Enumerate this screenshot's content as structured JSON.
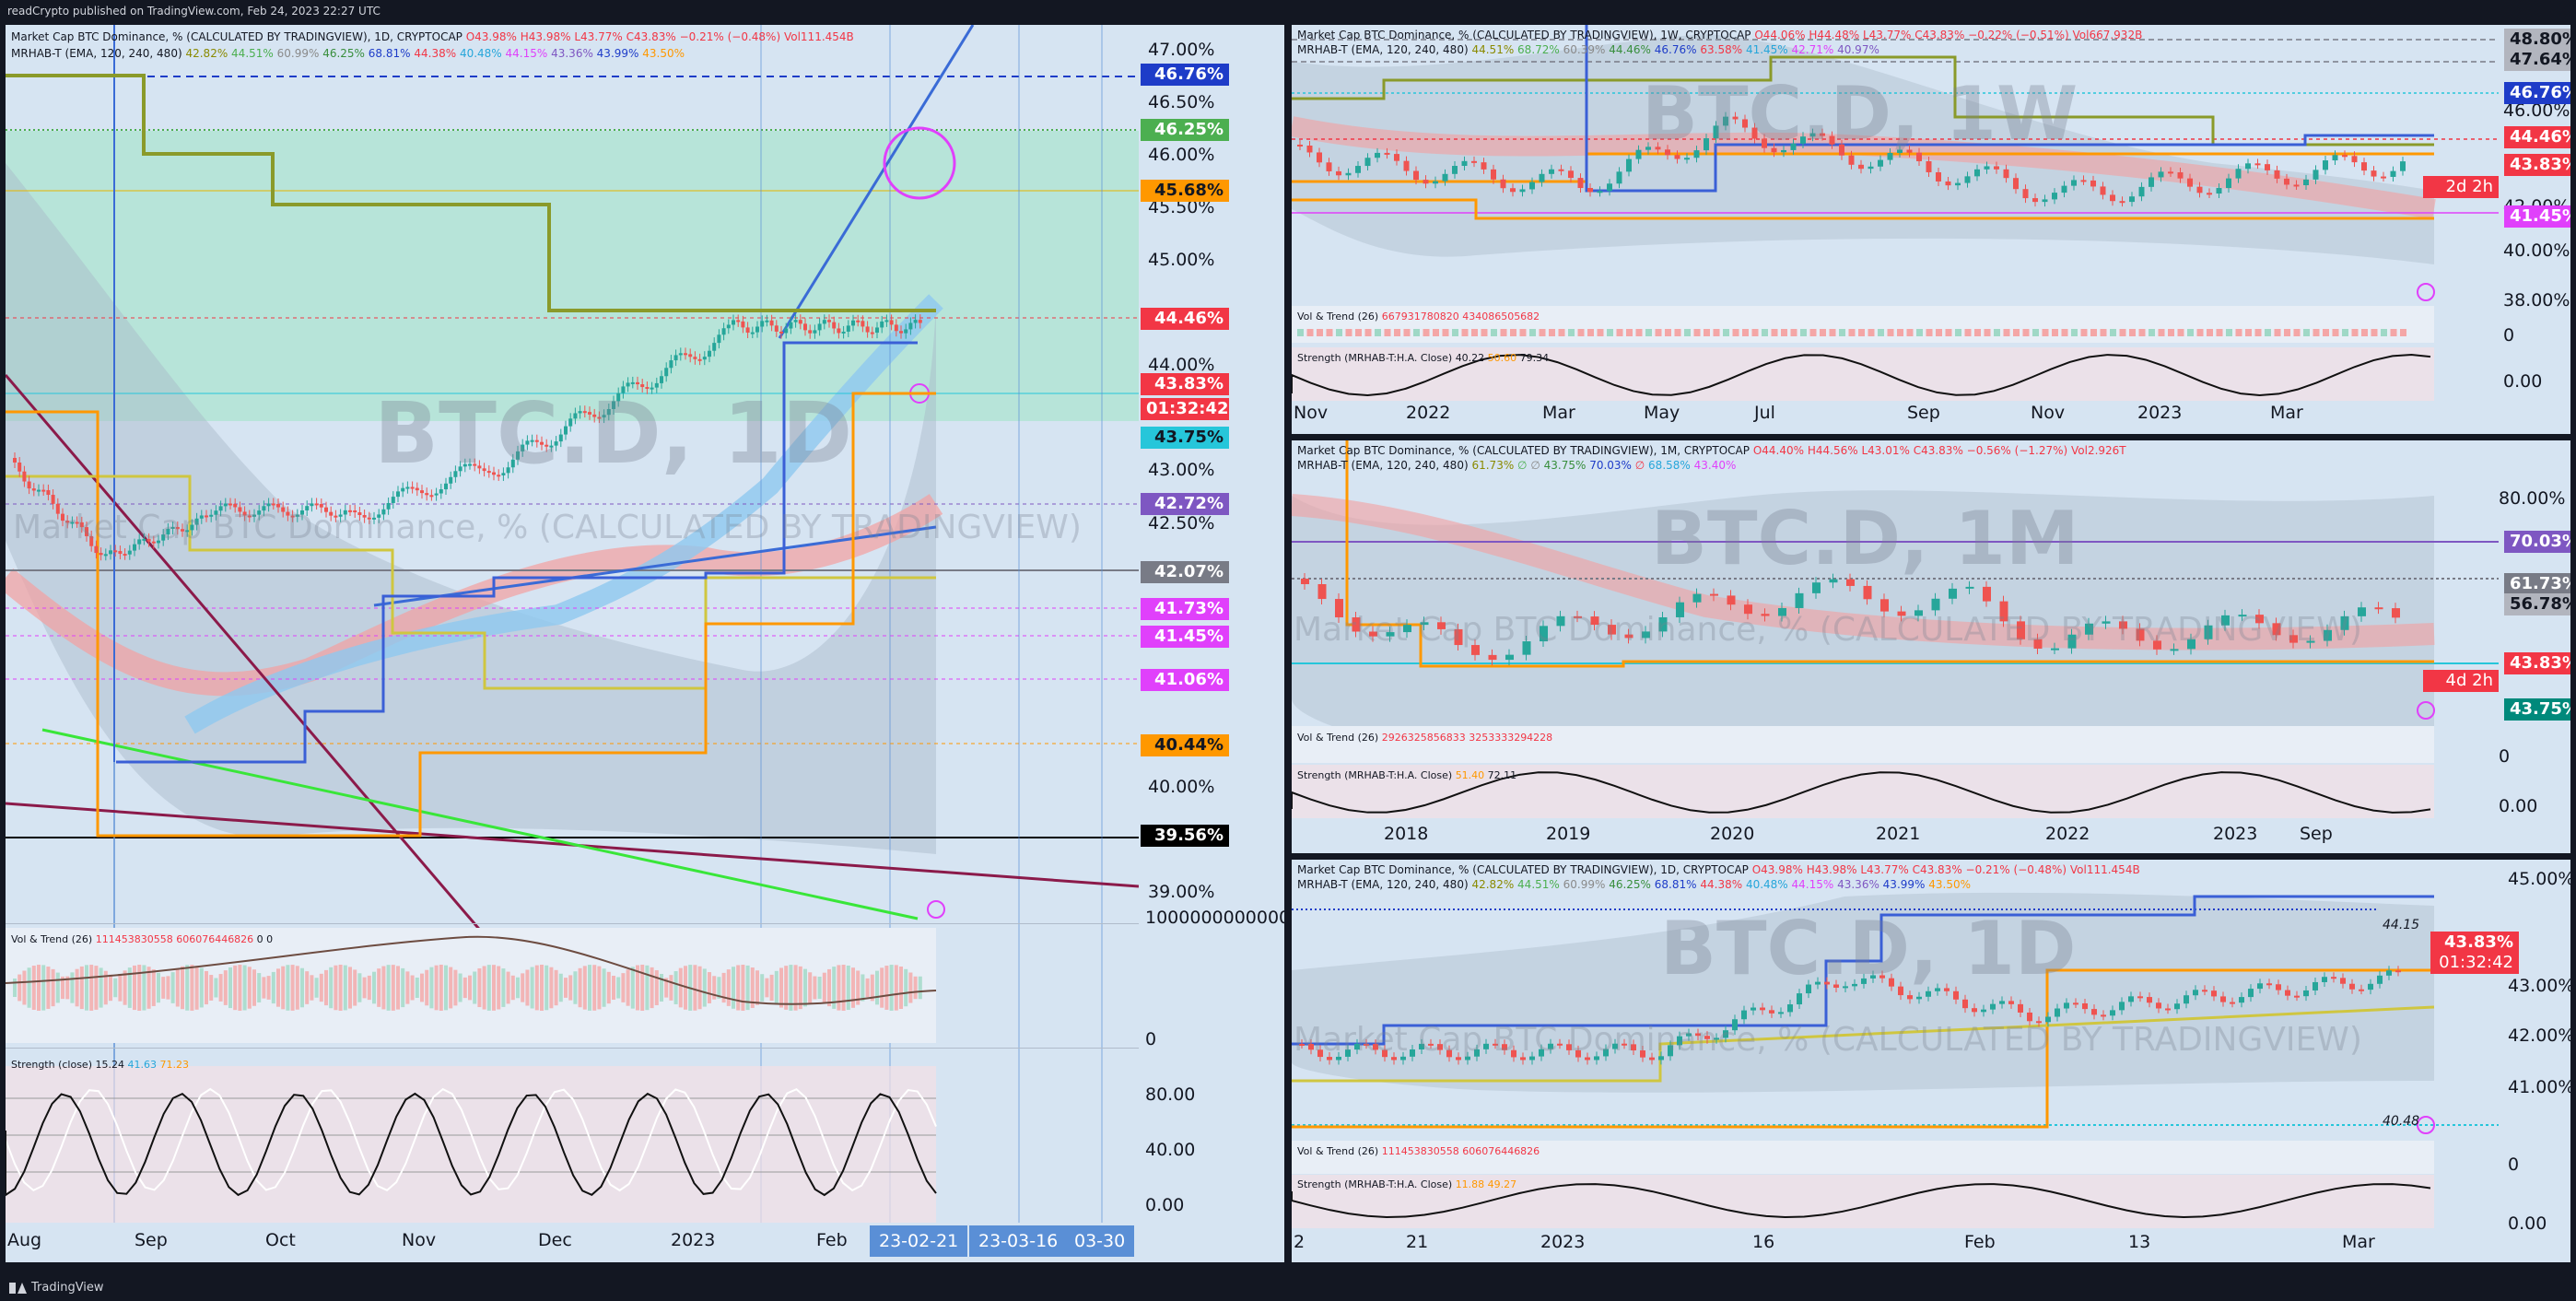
{
  "header": {
    "caption": "readCrypto published on TradingView.com, Feb 24, 2023 22:27 UTC"
  },
  "footer": {
    "brand": "TradingView"
  },
  "icons": {
    "logo": "tradingview-logo-icon",
    "lightning": "lightning-icon"
  },
  "colors": {
    "background": "#131722",
    "pane": "#d6e4f2",
    "red": "#f23645",
    "teal": "#26c6da",
    "blue": "#1e3cc8",
    "green": "#4caf50",
    "purple": "#7e57c2",
    "magenta": "#e040fb",
    "orange": "#ff9800",
    "gray": "#787b86"
  },
  "main": {
    "info_line1": "Market Cap BTC Dominance, % (CALCULATED BY TRADINGVIEW), 1D, CRYPTOCAP",
    "ohlc": {
      "o": "O43.98%",
      "h": "H43.98%",
      "l": "L43.77%",
      "c": "C43.83%",
      "chg": "−0.21% (−0.48%)",
      "vol": "Vol111.454B"
    },
    "info_line2_name": "MRHAB-T (EMA, 120, 240, 480)",
    "mrhab_values": [
      "42.82%",
      "44.51%",
      "60.99%",
      "46.25%",
      "68.81%",
      "44.38%",
      "40.48%",
      "44.15%",
      "43.36%",
      "43.99%",
      "43.50%"
    ],
    "watermark": "BTC.D, 1D",
    "watermark_sub": "Market Cap BTC Dominance, % (CALCULATED BY TRADINGVIEW)",
    "price_ticks": [
      "47.00%",
      "46.50%",
      "46.00%",
      "45.50%",
      "45.00%",
      "44.00%",
      "43.00%",
      "42.50%",
      "40.00%",
      "39.00%"
    ],
    "labels": [
      {
        "text": "46.76%",
        "bg": "#1e3cc8",
        "fg": "#ffffff"
      },
      {
        "text": "46.25%",
        "bg": "#4caf50",
        "fg": "#ffffff"
      },
      {
        "text": "45.68%",
        "bg": "#ff9800",
        "fg": "#131722"
      },
      {
        "text": "44.46%",
        "bg": "#f23645",
        "fg": "#ffffff"
      },
      {
        "text": "43.83%",
        "bg": "#f23645",
        "fg": "#ffffff"
      },
      {
        "text": "43.75%",
        "bg": "#26c6da",
        "fg": "#131722"
      },
      {
        "text": "42.72%",
        "bg": "#7e57c2",
        "fg": "#ffffff"
      },
      {
        "text": "42.07%",
        "bg": "#787b86",
        "fg": "#ffffff"
      },
      {
        "text": "41.73%",
        "bg": "#e040fb",
        "fg": "#ffffff"
      },
      {
        "text": "41.45%",
        "bg": "#e040fb",
        "fg": "#ffffff"
      },
      {
        "text": "41.06%",
        "bg": "#e040fb",
        "fg": "#ffffff"
      },
      {
        "text": "40.44%",
        "bg": "#ff9800",
        "fg": "#131722"
      },
      {
        "text": "39.56%",
        "bg": "#000000",
        "fg": "#ffffff"
      }
    ],
    "countdown": "01:32:42",
    "vol_title": "Vol & Trend (26)",
    "vol_values": [
      "111453830558",
      "606076446826",
      "0",
      "0"
    ],
    "vol_ticks": [
      "1000000000000",
      "0"
    ],
    "strength_title": "Strength (close)",
    "strength_values": [
      "15.24",
      "41.63",
      "71.23"
    ],
    "strength_ticks": [
      "80.00",
      "40.00",
      "0.00"
    ],
    "xticks": [
      "Aug",
      "Sep",
      "Oct",
      "Nov",
      "Dec",
      "2023",
      "Feb"
    ],
    "date_chips": [
      "23-02-21",
      "23-03-16",
      "03-30"
    ]
  },
  "weekly": {
    "info_line1": "Market Cap BTC Dominance, % (CALCULATED BY TRADINGVIEW), 1W, CRYPTOCAP",
    "ohlc": "O44.06% H44.48% L43.77% C43.83% −0.22% (−0.51%) Vol667.932B",
    "info_line2": "MRHAB-T (EMA, 120, 240, 480)",
    "mrhab_values": [
      "44.51%",
      "68.72%",
      "60.39%",
      "44.46%",
      "46.76%",
      "63.58%",
      "41.45%",
      "42.71%",
      "40.97%"
    ],
    "watermark": "BTC.D, 1W",
    "price_ticks": [
      "46.00%",
      "42.00%",
      "40.00%",
      "38.00%",
      "0",
      "0.00"
    ],
    "labels": [
      {
        "text": "48.80%",
        "bg": "#b2b5be",
        "fg": "#131722"
      },
      {
        "text": "47.64%",
        "bg": "#b2b5be",
        "fg": "#131722"
      },
      {
        "text": "46.76%",
        "bg": "#1e3cc8",
        "fg": "#ffffff"
      },
      {
        "text": "44.46%",
        "bg": "#f23645",
        "fg": "#ffffff"
      },
      {
        "text": "43.83%",
        "bg": "#f23645",
        "fg": "#ffffff"
      },
      {
        "text": "41.45%",
        "bg": "#e040fb",
        "fg": "#ffffff"
      }
    ],
    "countdown": "2d 2h",
    "vol_title": "Vol & Trend (26)",
    "vol_values": [
      "667931780820",
      "434086505682"
    ],
    "strength_title": "Strength (MRHAB-T:H.A. Close)",
    "strength_values": [
      "40.22",
      "50.60",
      "79.34"
    ],
    "xticks": [
      "Nov",
      "2022",
      "Mar",
      "May",
      "Jul",
      "Sep",
      "Nov",
      "2023",
      "Mar"
    ]
  },
  "monthly": {
    "info_line1": "Market Cap BTC Dominance, % (CALCULATED BY TRADINGVIEW), 1M, CRYPTOCAP",
    "ohlc": "O44.40% H44.56% L43.01% C43.83% −0.56% (−1.27%) Vol2.926T",
    "info_line2": "MRHAB-T (EMA, 120, 240, 480)",
    "mrhab_values": [
      "61.73%",
      "∅",
      "∅",
      "43.75%",
      "70.03%",
      "∅",
      "68.58%",
      "43.40%"
    ],
    "watermark": "BTC.D, 1M",
    "watermark_sub": "Market Cap BTC Dominance, % (CALCULATED BY TRADINGVIEW)",
    "price_ticks": [
      "80.00%",
      "0",
      "0.00"
    ],
    "labels": [
      {
        "text": "70.03%",
        "bg": "#7e57c2",
        "fg": "#ffffff"
      },
      {
        "text": "61.73%",
        "bg": "#787b86",
        "fg": "#ffffff"
      },
      {
        "text": "56.78%",
        "bg": "#b2b5be",
        "fg": "#131722"
      },
      {
        "text": "43.83%",
        "bg": "#f23645",
        "fg": "#ffffff"
      },
      {
        "text": "43.75%",
        "bg": "#00897b",
        "fg": "#ffffff"
      }
    ],
    "countdown": "4d 2h",
    "vol_title": "Vol & Trend (26)",
    "vol_values": [
      "2926325856833",
      "3253333294228"
    ],
    "strength_title": "Strength (MRHAB-T:H.A. Close)",
    "strength_values": [
      "51.40",
      "72.11"
    ],
    "xticks": [
      "2018",
      "2019",
      "2020",
      "2021",
      "2022",
      "2023",
      "Sep"
    ]
  },
  "daily": {
    "info_line1": "Market Cap BTC Dominance, % (CALCULATED BY TRADINGVIEW), 1D, CRYPTOCAP",
    "ohlc": "O43.98% H43.98% L43.77% C43.83% −0.21% (−0.48%) Vol111.454B",
    "info_line2": "MRHAB-T (EMA, 120, 240, 480)",
    "mrhab_values": [
      "42.82%",
      "44.51%",
      "60.99%",
      "46.25%",
      "68.81%",
      "44.38%",
      "40.48%",
      "44.15%",
      "43.36%",
      "43.99%",
      "43.50%"
    ],
    "watermark": "BTC.D, 1D",
    "watermark_sub": "Market Cap BTC Dominance, % (CALCULATED BY TRADINGVIEW)",
    "price_ticks": [
      "45.00%",
      "43.00%",
      "42.00%",
      "41.00%",
      "0",
      "0.00"
    ],
    "side_values": [
      "44.15",
      "40.48"
    ],
    "labels": [
      {
        "text": "43.83%",
        "bg": "#f23645",
        "fg": "#ffffff"
      }
    ],
    "countdown": "01:32:42",
    "vol_title": "Vol & Trend (26)",
    "vol_values": [
      "111453830558",
      "606076446826"
    ],
    "strength_title": "Strength (MRHAB-T:H.A. Close)",
    "strength_values": [
      "11.88",
      "49.27"
    ],
    "xticks": [
      "2",
      "21",
      "2023",
      "16",
      "Feb",
      "13",
      "Mar"
    ]
  }
}
